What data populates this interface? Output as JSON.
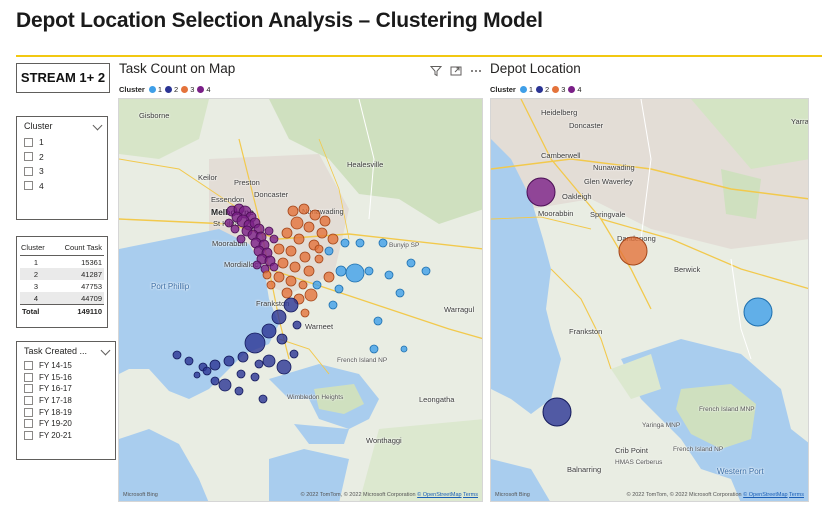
{
  "page": {
    "title": "Depot Location Selection Analysis – Clustering Model",
    "stream_label": "STREAM 1+ 2"
  },
  "colors": {
    "accent_rule": "#f2c811",
    "cluster_1": "#3f9fe8",
    "cluster_2": "#2b3494",
    "cluster_3": "#e4733b",
    "cluster_4": "#7a1f87"
  },
  "cluster_slicer": {
    "title": "Cluster",
    "options": [
      "1",
      "2",
      "3",
      "4"
    ]
  },
  "count_table": {
    "headers": [
      "Cluster",
      "Count Task"
    ],
    "rows": [
      {
        "cluster": "1",
        "count": "15361"
      },
      {
        "cluster": "2",
        "count": "41287"
      },
      {
        "cluster": "3",
        "count": "47753"
      },
      {
        "cluster": "4",
        "count": "44709"
      }
    ],
    "total_label": "Total",
    "total_value": "149110"
  },
  "fy_slicer": {
    "title": "Task Created ...",
    "options": [
      "FY 14-15",
      "FY 15-16",
      "FY 16-17",
      "FY 17-18",
      "FY 18-19",
      "FY 19-20",
      "FY 20-21"
    ]
  },
  "task_map": {
    "title": "Task Count on Map",
    "legend_title": "Cluster",
    "legend_items": [
      "1",
      "2",
      "3",
      "4"
    ],
    "toolbar_icons": [
      "filter-icon",
      "focus-mode-icon",
      "more-options-icon"
    ],
    "places": [
      "Gisborne",
      "Healesville",
      "Preston",
      "Keilor",
      "Doncaster",
      "Essendon",
      "Melbourne",
      "St Kilda",
      "Nunawading",
      "Moorabbin",
      "Mordialloc",
      "Bunyip SP",
      "Port Phillip",
      "Frankston",
      "Warragul",
      "Warneet",
      "French Island NP",
      "Wimbledon Heights",
      "Leongatha",
      "Wonthaggi"
    ],
    "bing_label": "Microsoft Bing",
    "attribution": "© 2022 TomTom, © 2022 Microsoft Corporation",
    "osm_link": "© OpenStreetMap",
    "terms_link": "Terms"
  },
  "depot_map": {
    "title": "Depot Location",
    "legend_title": "Cluster",
    "legend_items": [
      "1",
      "2",
      "3",
      "4"
    ],
    "places": [
      "Heidelberg",
      "Doncaster",
      "Camberwell",
      "Nunawading",
      "Yarra",
      "Glen Waverley",
      "Oakleigh",
      "Moorabbin",
      "Springvale",
      "Dandenong",
      "Berwick",
      "Frankston",
      "Yaringa MNP",
      "French Island MNP",
      "French Island NP",
      "Crib Point",
      "HMAS Cerberus",
      "Balnarring",
      "Western Port"
    ],
    "bing_label": "Microsoft Bing",
    "attribution": "© 2022 TomTom, © 2022 Microsoft Corporation",
    "osm_link": "© OpenStreetMap",
    "terms_link": "Terms"
  }
}
